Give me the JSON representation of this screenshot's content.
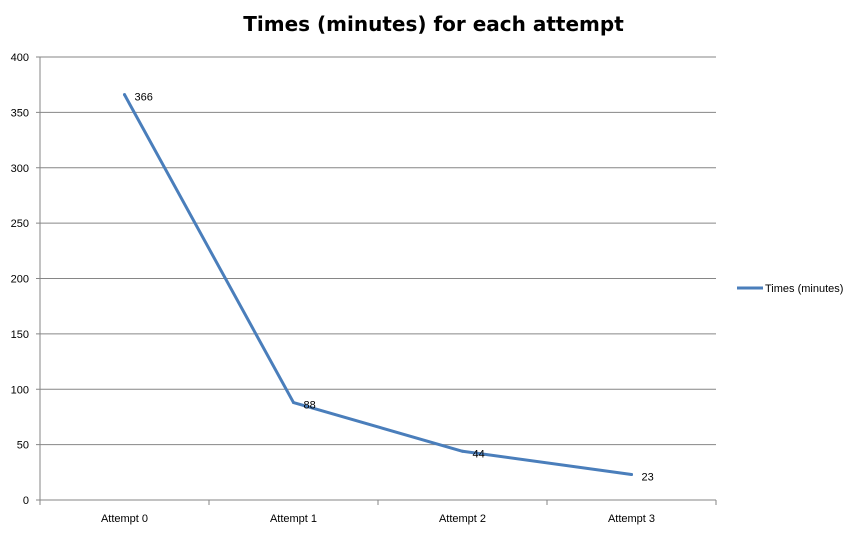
{
  "chart_data": {
    "type": "line",
    "title": "Times (minutes) for each attempt",
    "categories": [
      "Attempt 0",
      "Attempt 1",
      "Attempt 2",
      "Attempt 3"
    ],
    "series": [
      {
        "name": "Times (minutes)",
        "values": [
          366,
          88,
          44,
          23
        ],
        "color": "#4a7ebb"
      }
    ],
    "data_labels": [
      "366",
      "88",
      "44",
      "23"
    ],
    "y_ticks": [
      "0",
      "50",
      "100",
      "150",
      "200",
      "250",
      "300",
      "350",
      "400"
    ],
    "ylim": [
      0,
      400
    ],
    "grid": true,
    "legend_position": "right",
    "colors": {
      "line": "#4a7ebb",
      "grid": "#868686",
      "axis": "#868686"
    }
  }
}
